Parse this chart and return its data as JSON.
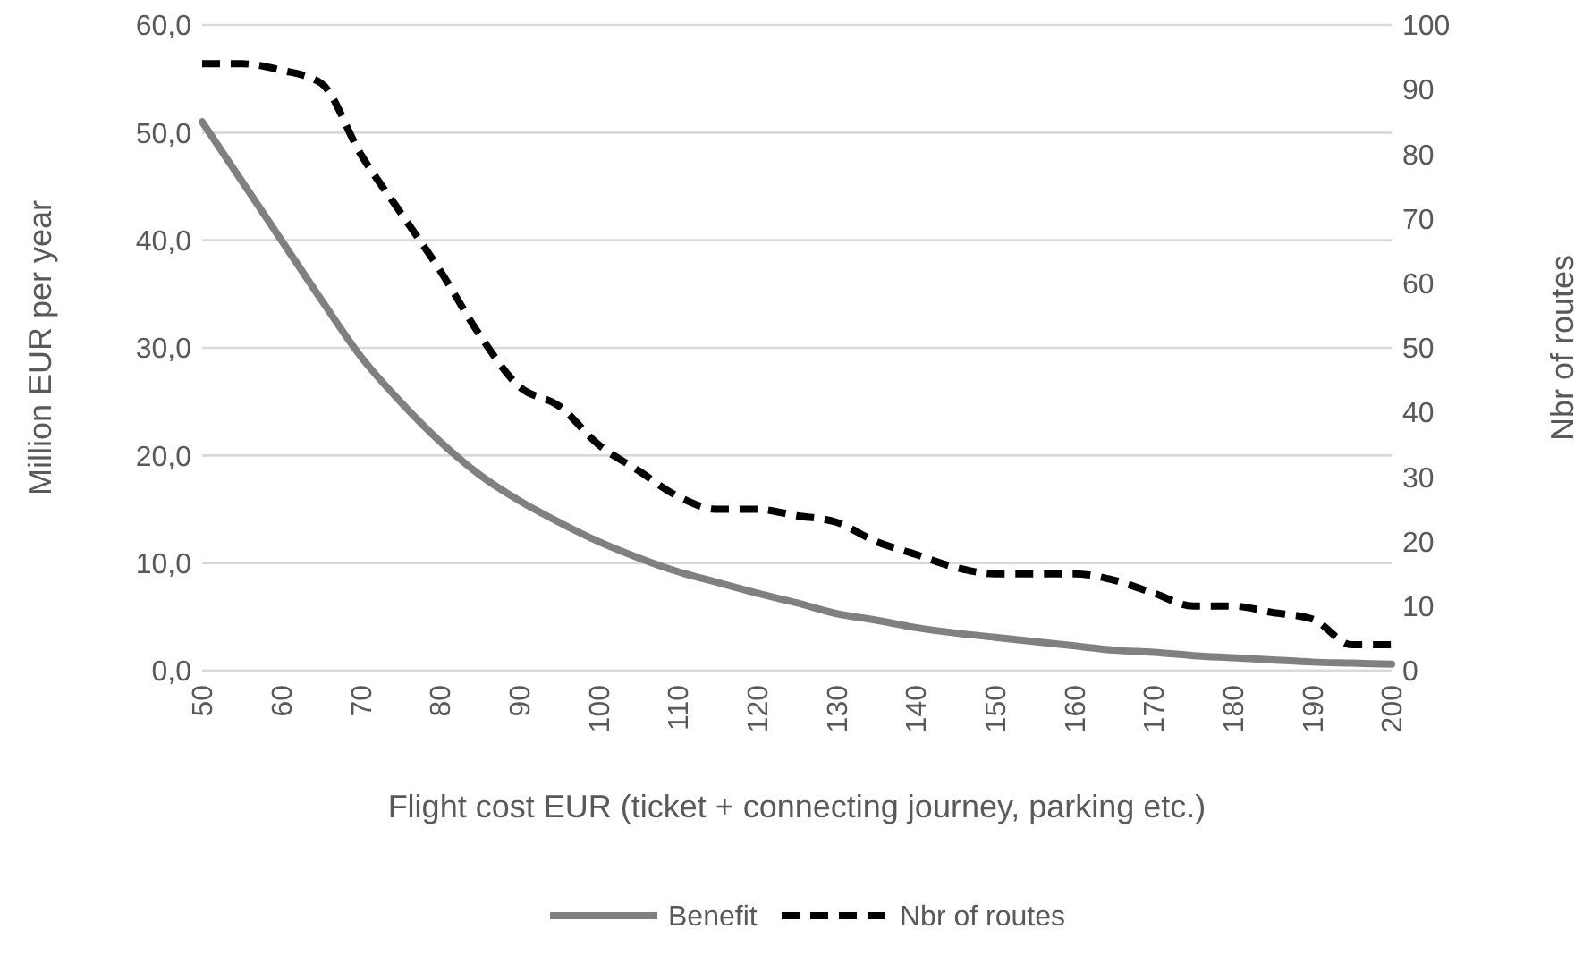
{
  "chart_data": {
    "type": "line",
    "xlabel": "Flight cost EUR (ticket + connecting journey, parking etc.)",
    "ylabel": "Million EUR per year",
    "y2label": "Nbr of routes",
    "x": [
      50,
      55,
      60,
      65,
      70,
      75,
      80,
      85,
      90,
      95,
      100,
      105,
      110,
      115,
      120,
      125,
      130,
      135,
      140,
      145,
      150,
      155,
      160,
      165,
      170,
      175,
      180,
      185,
      190,
      195,
      200
    ],
    "xlim": [
      50,
      200
    ],
    "xticks": [
      50,
      60,
      70,
      80,
      90,
      100,
      110,
      120,
      130,
      140,
      150,
      160,
      170,
      180,
      190,
      200
    ],
    "ylim": [
      0,
      60
    ],
    "yticks": [
      {
        "value": 0,
        "label": "0,0"
      },
      {
        "value": 10,
        "label": "10,0"
      },
      {
        "value": 20,
        "label": "20,0"
      },
      {
        "value": 30,
        "label": "30,0"
      },
      {
        "value": 40,
        "label": "40,0"
      },
      {
        "value": 50,
        "label": "50,0"
      },
      {
        "value": 60,
        "label": "60,0"
      }
    ],
    "y2lim": [
      0,
      100
    ],
    "y2ticks": [
      0,
      10,
      20,
      30,
      40,
      50,
      60,
      70,
      80,
      90,
      100
    ],
    "grid": "y",
    "legend": "bottom",
    "series": [
      {
        "name": "Benefit",
        "color": "#808080",
        "line_style": "solid",
        "values": [
          51,
          45.5,
          40,
          34.5,
          29.2,
          25,
          21.3,
          18.2,
          15.8,
          13.8,
          12,
          10.5,
          9.2,
          8.2,
          7.2,
          6.3,
          5.3,
          4.7,
          4,
          3.5,
          3.1,
          2.7,
          2.3,
          1.9,
          1.7,
          1.4,
          1.2,
          1,
          0.8,
          0.7,
          0.6
        ]
      },
      {
        "name": "Nbr of routes",
        "color": "#000000",
        "line_style": "dashed",
        "axis": "y2",
        "values": [
          94,
          94,
          93,
          91,
          80,
          71,
          62,
          52,
          44,
          41,
          35,
          31,
          27,
          25,
          25,
          24,
          23,
          20,
          18,
          16,
          15,
          15,
          15,
          14,
          12,
          10,
          10,
          9,
          8,
          4,
          4
        ]
      }
    ]
  }
}
